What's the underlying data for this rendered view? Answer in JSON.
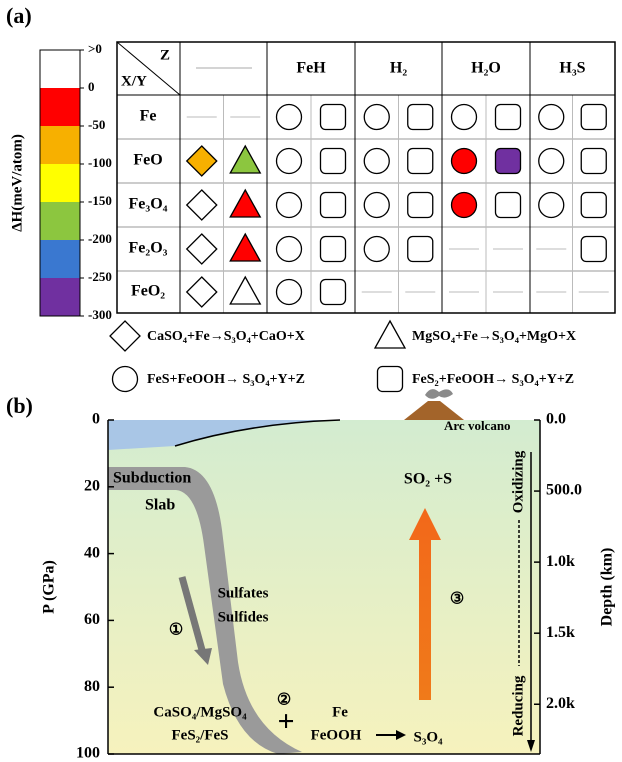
{
  "panel_a": {
    "label": "(a)",
    "colorbar": {
      "title": "ΔH(meV/atom)",
      "ticks": [
        {
          "value": 50,
          "label": ">0"
        },
        0,
        -50,
        -100,
        -150,
        -200,
        -250,
        -300
      ],
      "colors": [
        "#ffffff",
        "#ff0000",
        "#f7b000",
        "#ffff00",
        "#8cc63f",
        "#3a78d0",
        "#7030a0"
      ]
    },
    "table": {
      "corner_top": "Z",
      "corner_bottom": "X/Y",
      "columns": [
        "FeH",
        "H₂",
        "H₂O",
        "H₃S"
      ],
      "rows": [
        {
          "label": "Fe",
          "cells": [
            null,
            null,
            {
              "shape": "circle",
              "color": "#ffffff"
            },
            {
              "shape": "square",
              "color": "#ffffff"
            },
            {
              "shape": "circle",
              "color": "#ffffff"
            },
            {
              "shape": "square",
              "color": "#ffffff"
            },
            {
              "shape": "circle",
              "color": "#ffffff"
            },
            {
              "shape": "square",
              "color": "#ffffff"
            },
            {
              "shape": "circle",
              "color": "#ffffff"
            },
            {
              "shape": "square",
              "color": "#ffffff"
            }
          ]
        },
        {
          "label": "FeO",
          "cells": [
            {
              "shape": "diamond",
              "color": "#f7b000"
            },
            {
              "shape": "triangle",
              "color": "#8cc63f"
            },
            {
              "shape": "circle",
              "color": "#ffffff"
            },
            {
              "shape": "square",
              "color": "#ffffff"
            },
            {
              "shape": "circle",
              "color": "#ffffff"
            },
            {
              "shape": "square",
              "color": "#ffffff"
            },
            {
              "shape": "circle",
              "color": "#ff0000"
            },
            {
              "shape": "square",
              "color": "#7030a0"
            },
            {
              "shape": "circle",
              "color": "#ffffff"
            },
            {
              "shape": "square",
              "color": "#ffffff"
            }
          ]
        },
        {
          "label": "Fe₃O₄",
          "cells": [
            {
              "shape": "diamond",
              "color": "#ffffff"
            },
            {
              "shape": "triangle",
              "color": "#ff0000"
            },
            {
              "shape": "circle",
              "color": "#ffffff"
            },
            {
              "shape": "square",
              "color": "#ffffff"
            },
            {
              "shape": "circle",
              "color": "#ffffff"
            },
            {
              "shape": "square",
              "color": "#ffffff"
            },
            {
              "shape": "circle",
              "color": "#ff0000"
            },
            {
              "shape": "square",
              "color": "#ffffff"
            },
            {
              "shape": "circle",
              "color": "#ffffff"
            },
            {
              "shape": "square",
              "color": "#ffffff"
            }
          ]
        },
        {
          "label": "Fe₂O₃",
          "cells": [
            {
              "shape": "diamond",
              "color": "#ffffff"
            },
            {
              "shape": "triangle",
              "color": "#ff0000"
            },
            {
              "shape": "circle",
              "color": "#ffffff"
            },
            {
              "shape": "square",
              "color": "#ffffff"
            },
            {
              "shape": "circle",
              "color": "#ffffff"
            },
            {
              "shape": "square",
              "color": "#ffffff"
            },
            null,
            null,
            null,
            {
              "shape": "square",
              "color": "#ffffff"
            }
          ]
        },
        {
          "label": "FeO₂",
          "cells": [
            {
              "shape": "diamond",
              "color": "#ffffff"
            },
            {
              "shape": "triangle",
              "color": "#ffffff"
            },
            {
              "shape": "circle",
              "color": "#ffffff"
            },
            {
              "shape": "square",
              "color": "#ffffff"
            },
            null,
            null,
            null,
            null,
            null,
            null
          ]
        }
      ]
    },
    "legend": [
      {
        "shape": "diamond",
        "text": "CaSO₄+Fe→S₃O₄+CaO+X"
      },
      {
        "shape": "triangle",
        "text": "MgSO₄+Fe→S₃O₄+MgO+X"
      },
      {
        "shape": "circle",
        "text": "FeS+FeOOH→ S₃O₄+Y+Z"
      },
      {
        "shape": "square",
        "text": "FeS₂+FeOOH→ S₃O₄+Y+Z"
      }
    ]
  },
  "panel_b": {
    "label": "(b)",
    "ylabel": "P (GPa)",
    "y2label": "Depth (km)",
    "ylim": [
      0,
      100
    ],
    "yticks": [
      0,
      20,
      40,
      60,
      80,
      100
    ],
    "y2lim": [
      0,
      2350
    ],
    "y2ticks": [
      {
        "value": 0,
        "label": "0.0"
      },
      {
        "value": 500,
        "label": "500.0"
      },
      {
        "value": 1000,
        "label": "1.0k"
      },
      {
        "value": 1500,
        "label": "1.5k"
      },
      {
        "value": 2000,
        "label": "2.0k"
      }
    ],
    "annotations": {
      "slab_1": "Subduction",
      "slab_2": "Slab",
      "volcano": "Arc volcano",
      "sulfates": "Sulfates",
      "sulfides": "Sulfides",
      "step_1": "①",
      "step_2": "②",
      "step_3": "③",
      "reactant_1": "CaSO₄/MgSO₄",
      "reactant_2": "FeS₂/FeS",
      "plus": "+",
      "reactant_3": "Fe",
      "reactant_4": "FeOOH",
      "product": "S₃O₄",
      "outgas": "SO₂ +S",
      "oxidizing": "Oxidizing",
      "reducing": "Reducing"
    }
  }
}
